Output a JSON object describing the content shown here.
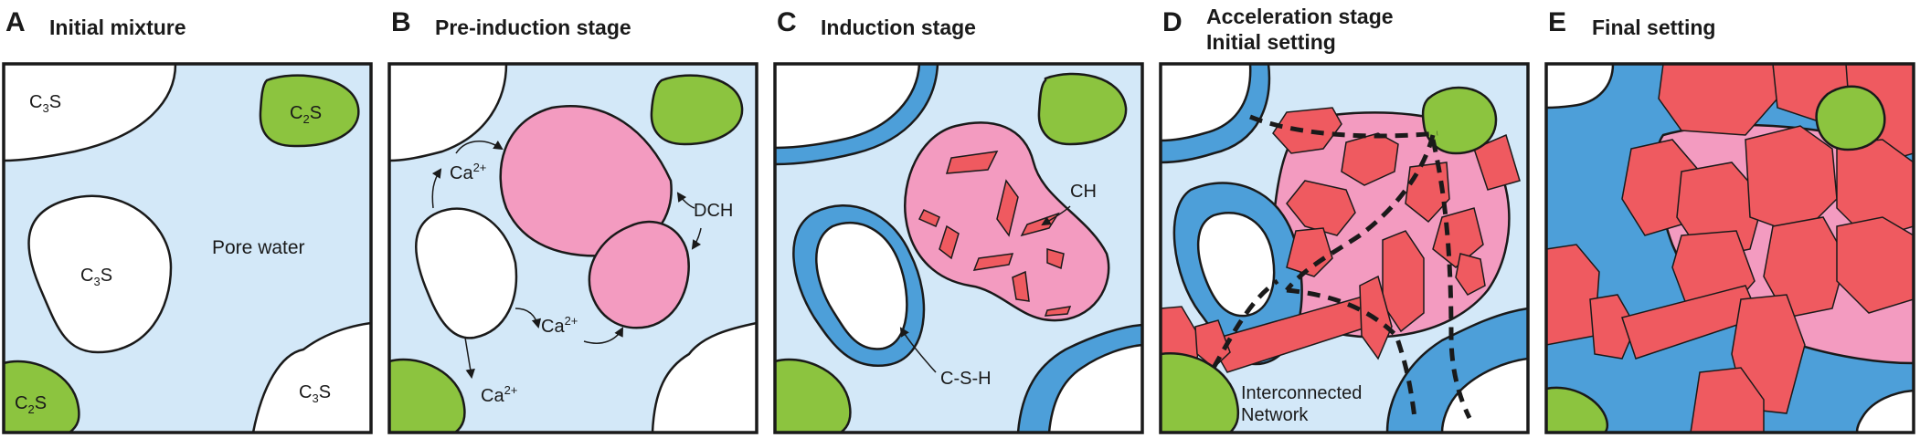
{
  "colors": {
    "pore_water": "#d3e8f8",
    "c3s": "#ffffff",
    "c2s": "#8cc43f",
    "dch": "#f39bc0",
    "ch": "#ef5a60",
    "csh": "#4d9fd9",
    "outline": "#1a1a1a"
  },
  "panels": [
    {
      "letter": "A",
      "title": "Initial mixture",
      "labels": {
        "c3s_a": {
          "main": "C",
          "sub": "3",
          "tail": "S"
        },
        "c3s_b": {
          "main": "C",
          "sub": "3",
          "tail": "S"
        },
        "c3s_c": {
          "main": "C",
          "sub": "3",
          "tail": "S"
        },
        "c2s_a": {
          "main": "C",
          "sub": "2",
          "tail": "S"
        },
        "c2s_b": {
          "main": "C",
          "sub": "2",
          "tail": "S"
        },
        "pore_water": "Pore water"
      }
    },
    {
      "letter": "B",
      "title": "Pre-induction stage",
      "labels": {
        "ca_1": {
          "main": "Ca",
          "sup": "2+"
        },
        "ca_2": {
          "main": "Ca",
          "sup": "2+"
        },
        "ca_3": {
          "main": "Ca",
          "sup": "2+"
        },
        "dch": "DCH"
      }
    },
    {
      "letter": "C",
      "title": "Induction stage",
      "labels": {
        "ch": "CH",
        "csh": "C-S-H"
      }
    },
    {
      "letter": "D",
      "title_line1": "Acceleration stage",
      "title_line2": "Initial setting",
      "labels": {
        "network_line1": "Interconnected",
        "network_line2": "Network"
      }
    },
    {
      "letter": "E",
      "title": "Final setting"
    }
  ]
}
